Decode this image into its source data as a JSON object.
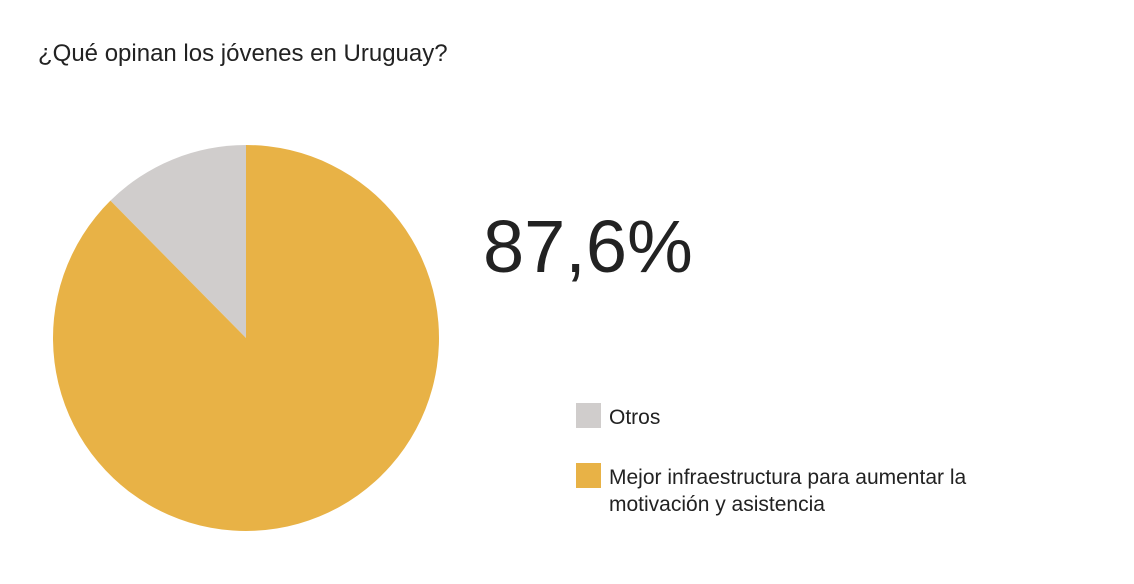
{
  "chart_data": {
    "type": "pie",
    "title": "¿Qué opinan los jóvenes en Uruguay?",
    "categories": [
      "Otros",
      "Mejor infraestructura para aumentar la motivación y asistencia"
    ],
    "values": [
      12.4,
      87.6
    ],
    "value_labels": [
      null,
      "87,6%"
    ],
    "colors": [
      "#d0cdcc",
      "#e8b246"
    ],
    "start": "top",
    "direction": "counterclockwise"
  }
}
